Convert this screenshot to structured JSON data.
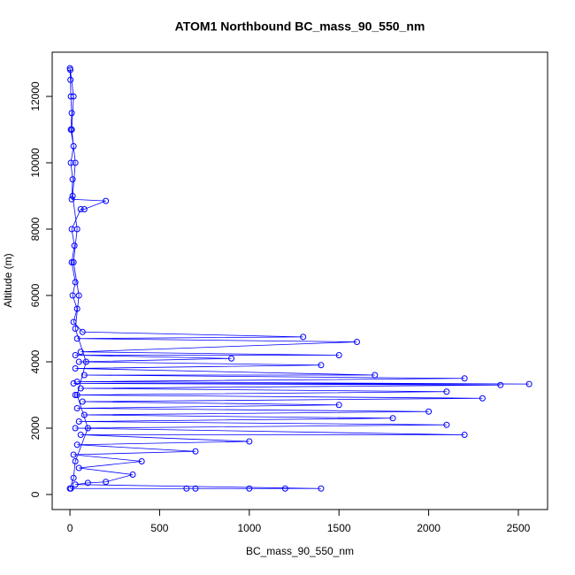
{
  "chart_data": {
    "type": "line",
    "title": "ATOM1 Northbound BC_mass_90_550_nm",
    "x_label": "BC_mass_90_550_nm",
    "y_label": "Altitude (m)",
    "markers": true,
    "color": "#0000ff",
    "xlim": [
      -99,
      2663
    ],
    "ylim": [
      -453,
      13333
    ],
    "xticks": [
      0,
      500,
      1000,
      1500,
      2000,
      2500
    ],
    "yticks": [
      0,
      2000,
      4000,
      6000,
      8000,
      10000,
      12000
    ],
    "x": [
      5,
      650,
      700,
      1000,
      1200,
      1400,
      30,
      100,
      200,
      350,
      50,
      400,
      20,
      700,
      40,
      1000,
      60,
      2200,
      30,
      2100,
      50,
      1800,
      80,
      2000,
      40,
      1500,
      70,
      2300,
      30,
      2100,
      60,
      2400,
      20,
      2560,
      40,
      2200,
      80,
      1700,
      30,
      1400,
      50,
      900,
      30,
      1500,
      60,
      1600,
      40,
      1300,
      70,
      20,
      40,
      15,
      30,
      10,
      25,
      10,
      60,
      80,
      200,
      10,
      15,
      5,
      20,
      5,
      10,
      5,
      3,
      0,
      2,
      20,
      10,
      30,
      15,
      40,
      20,
      50,
      30,
      90,
      40,
      100,
      30,
      20,
      0
    ],
    "y": [
      180,
      180,
      180,
      180,
      180,
      180,
      300,
      350,
      380,
      600,
      800,
      1000,
      1200,
      1300,
      1500,
      1600,
      1800,
      1800,
      2000,
      2100,
      2200,
      2300,
      2400,
      2500,
      2600,
      2700,
      2800,
      2900,
      3000,
      3100,
      3200,
      3300,
      3350,
      3330,
      3400,
      3500,
      3600,
      3600,
      3800,
      3900,
      4000,
      4100,
      4200,
      4200,
      4300,
      4600,
      4700,
      4750,
      4900,
      5200,
      5600,
      6000,
      6400,
      7000,
      7500,
      8000,
      8600,
      8600,
      8850,
      8900,
      9500,
      10000,
      10500,
      11000,
      11500,
      12000,
      12500,
      12850,
      12800,
      12000,
      11000,
      10000,
      9000,
      8000,
      7000,
      6000,
      5000,
      4000,
      3000,
      2000,
      1000,
      500,
      180
    ]
  }
}
